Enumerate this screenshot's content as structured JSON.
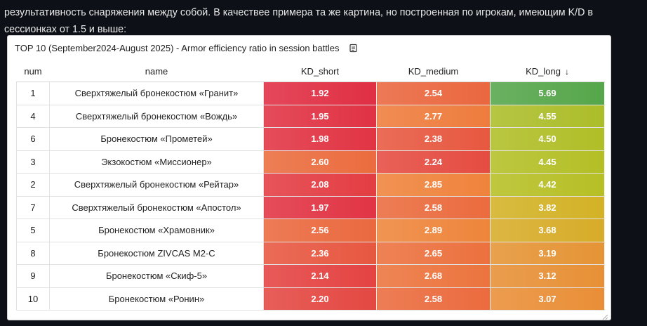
{
  "intro_text": "результативность снаряжения между собой. В качествее примера та же картина, но построенная по игрокам, имеющим K/D в сессионках от 1.5 и выше:",
  "panel": {
    "title": "TOP 10 (September2024-August 2025) - Armor efficiency ratio in session battles",
    "title_icon": "document-icon"
  },
  "table": {
    "headers": {
      "num": "num",
      "name": "name",
      "kd_short": "KD_short",
      "kd_medium": "KD_medium",
      "kd_long": "KD_long",
      "sort_icon": "arrow-down-icon"
    },
    "rows": [
      {
        "num": "1",
        "name": "Сверхтяжелый бронекостюм «Гранит»",
        "kd_short": "1.92",
        "kd_medium": "2.54",
        "kd_long": "5.69"
      },
      {
        "num": "4",
        "name": "Сверхтяжелый бронекостюм «Вождь»",
        "kd_short": "1.95",
        "kd_medium": "2.77",
        "kd_long": "4.55"
      },
      {
        "num": "6",
        "name": "Бронекостюм «Прометей»",
        "kd_short": "1.98",
        "kd_medium": "2.38",
        "kd_long": "4.50"
      },
      {
        "num": "3",
        "name": "Экзокостюм «Миссионер»",
        "kd_short": "2.60",
        "kd_medium": "2.24",
        "kd_long": "4.45"
      },
      {
        "num": "2",
        "name": "Сверхтяжелый бронекостюм «Рейтар»",
        "kd_short": "2.08",
        "kd_medium": "2.85",
        "kd_long": "4.42"
      },
      {
        "num": "7",
        "name": "Сверхтяжелый бронекостюм «Апостол»",
        "kd_short": "1.97",
        "kd_medium": "2.58",
        "kd_long": "3.82"
      },
      {
        "num": "5",
        "name": "Бронекостюм «Храмовник»",
        "kd_short": "2.56",
        "kd_medium": "2.89",
        "kd_long": "3.68"
      },
      {
        "num": "8",
        "name": "Бронекостюм ZIVCAS M2-C",
        "kd_short": "2.36",
        "kd_medium": "2.65",
        "kd_long": "3.19"
      },
      {
        "num": "9",
        "name": "Бронекостюм «Скиф-5»",
        "kd_short": "2.14",
        "kd_medium": "2.68",
        "kd_long": "3.12"
      },
      {
        "num": "10",
        "name": "Бронекостюм «Ронин»",
        "kd_short": "2.20",
        "kd_medium": "2.58",
        "kd_long": "3.07"
      }
    ]
  },
  "colors": {
    "page_background": "#0d1117",
    "panel_background": "#ffffff",
    "scale_low": "#e02f44",
    "scale_mid_orange": "#ef843c",
    "scale_yellow": "#c8c41e",
    "scale_high": "#56a64b"
  }
}
